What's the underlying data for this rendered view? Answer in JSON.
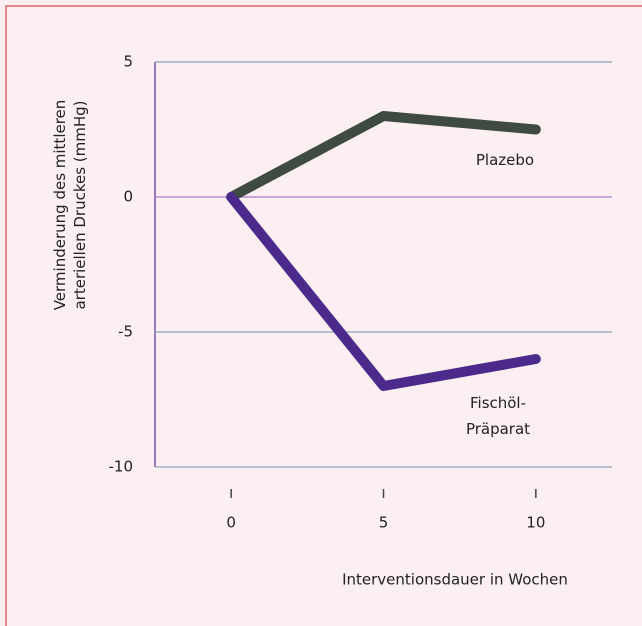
{
  "chart_data": {
    "type": "line",
    "ylabel": [
      "Verminderung des mittleren",
      "arteriellen Druckes (mmHg)"
    ],
    "xlabel": "Interventionsdauer in Wochen",
    "x": [
      0,
      5,
      10
    ],
    "series": [
      {
        "name": [
          "Plazebo"
        ],
        "color": "#3e4a42",
        "values": [
          0,
          3,
          2.5
        ]
      },
      {
        "name": [
          "Fischöl-",
          "Präparat"
        ],
        "color": "#4b2a8c",
        "values": [
          0,
          -7,
          -6
        ]
      }
    ],
    "xlim": [
      -2.5,
      12.5
    ],
    "xticks": [
      0,
      5,
      10
    ],
    "ylim": [
      -10,
      5
    ],
    "yticks": [
      -10,
      -5,
      0,
      5
    ],
    "grid": true
  }
}
